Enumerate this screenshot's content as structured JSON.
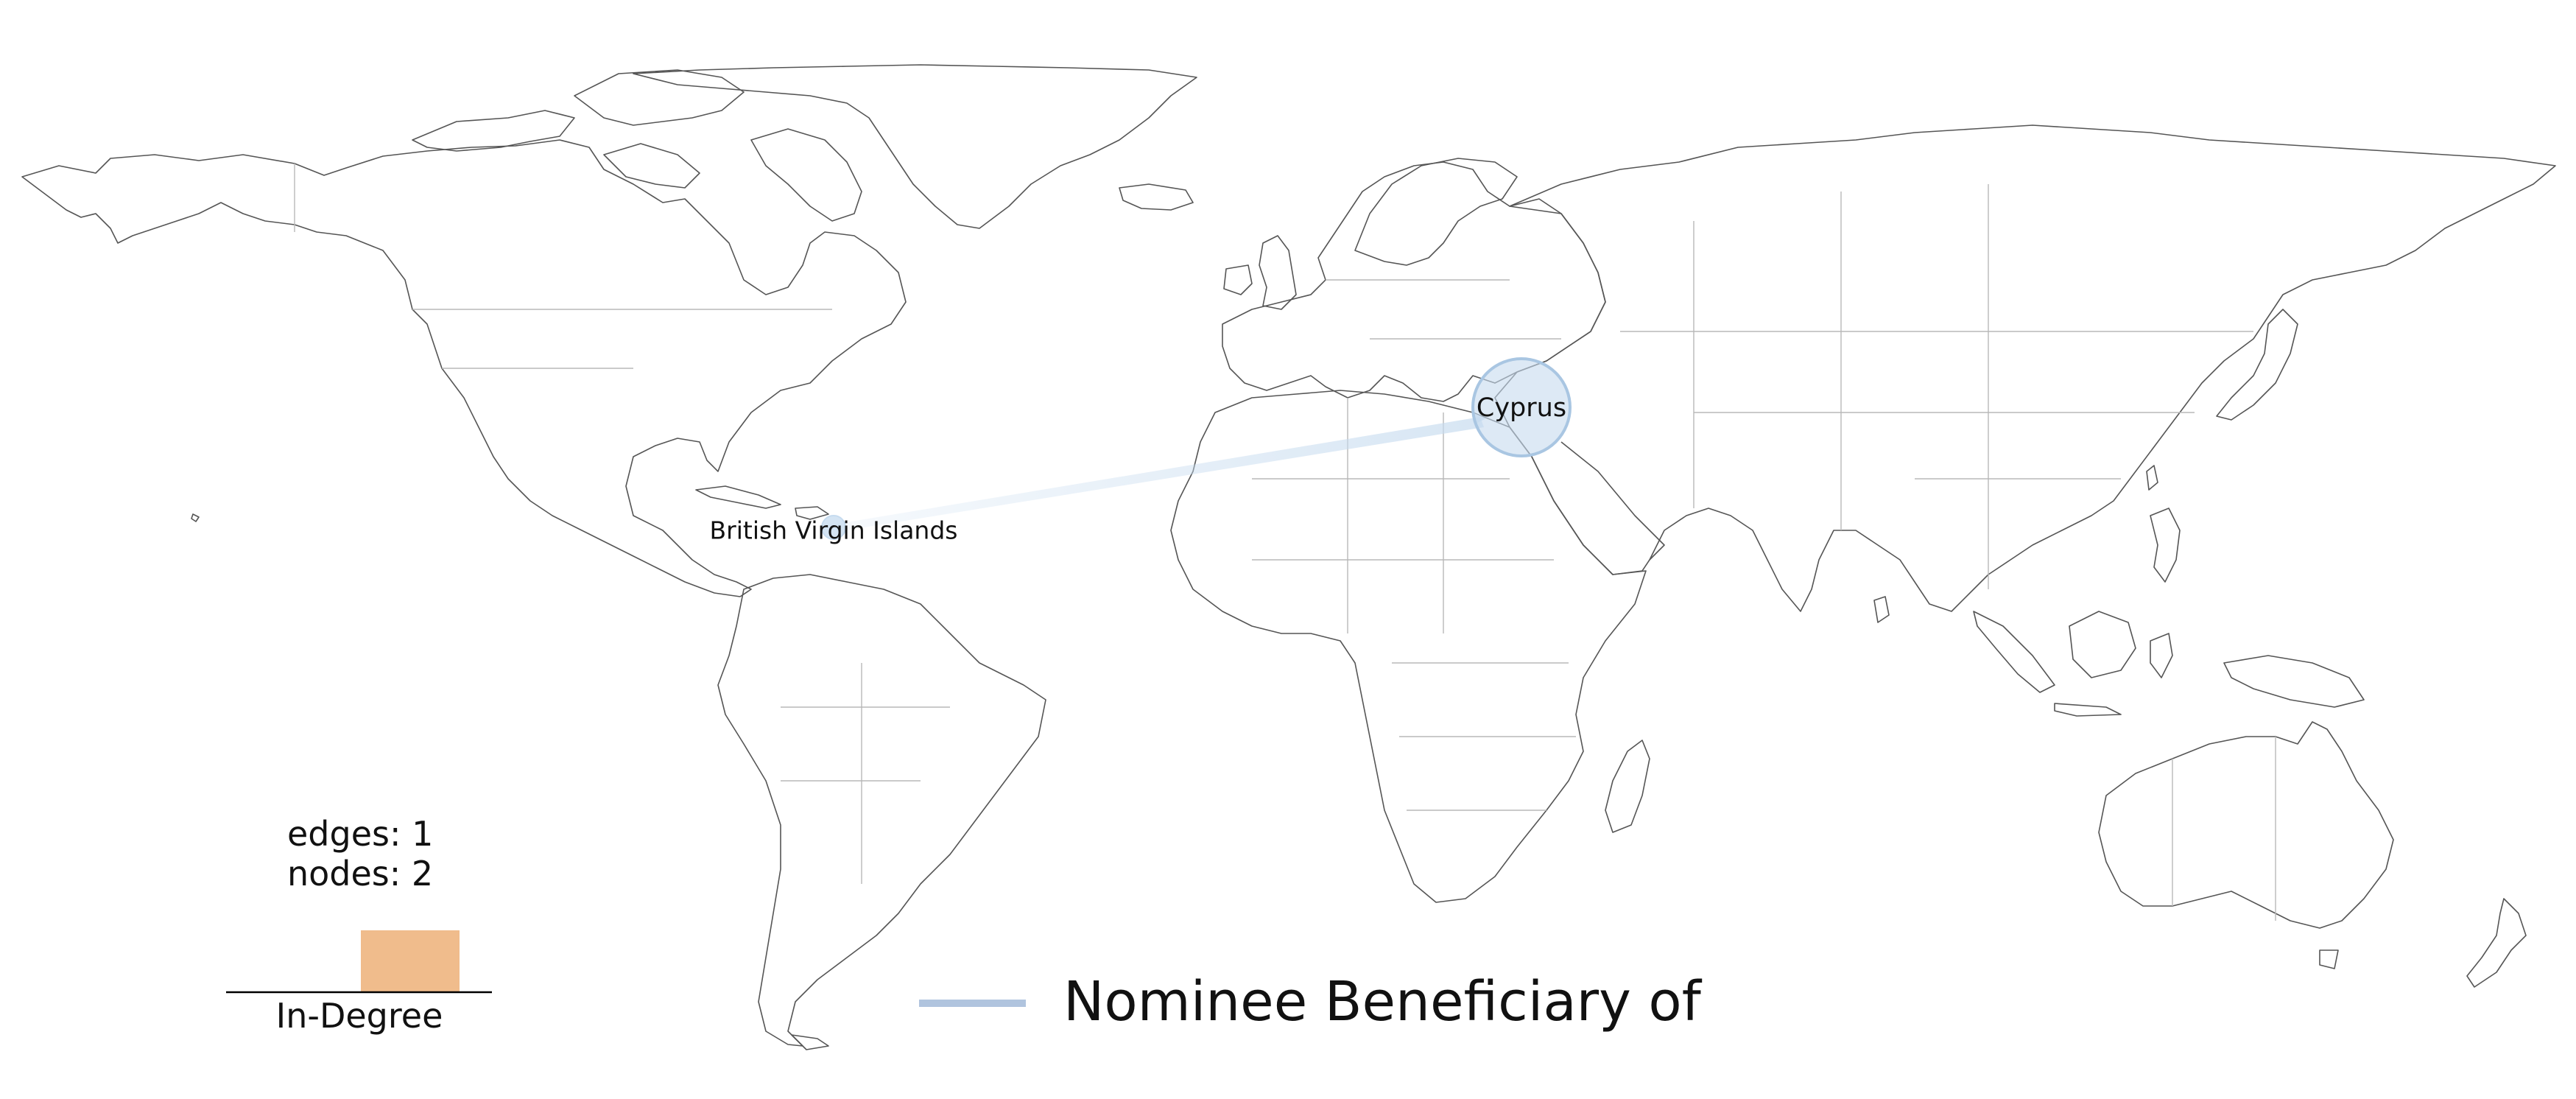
{
  "nodes": [
    {
      "id": "bvi",
      "label": "British Virgin Islands",
      "in_degree": 0
    },
    {
      "id": "cyprus",
      "label": "Cyprus",
      "in_degree": 1
    }
  ],
  "edges": [
    {
      "source": "bvi",
      "target": "cyprus",
      "type": "Nominee Beneficiary of"
    }
  ],
  "stats": {
    "edges_text": "edges: 1",
    "nodes_text": "nodes: 2"
  },
  "histogram": {
    "label": "In-Degree",
    "bar_color": "#f0bc8c",
    "bins": [
      0,
      1
    ]
  },
  "legend": {
    "edge_label": "Nominee Beneficiary of",
    "edge_color": "#b0c4de"
  },
  "colors": {
    "node_fill": "#c6dbef",
    "edge": "#c6dbef",
    "land_stroke": "#555555",
    "border_stroke": "#b8b8b8"
  }
}
